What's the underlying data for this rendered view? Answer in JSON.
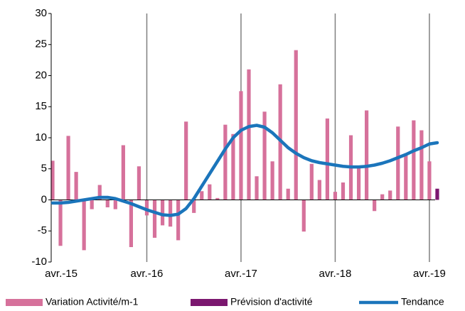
{
  "chart_data": {
    "type": "bar-line",
    "categories": [
      "avr.-15",
      null,
      null,
      null,
      null,
      null,
      null,
      null,
      null,
      null,
      null,
      null,
      "avr.-16",
      null,
      null,
      null,
      null,
      null,
      null,
      null,
      null,
      null,
      null,
      null,
      "avr.-17",
      null,
      null,
      null,
      null,
      null,
      null,
      null,
      null,
      null,
      null,
      null,
      "avr.-18",
      null,
      null,
      null,
      null,
      null,
      null,
      null,
      null,
      null,
      null,
      null,
      "avr.-19",
      null
    ],
    "series": [
      {
        "name": "Variation Activité/m-1",
        "type": "bar",
        "color": "#d6719b",
        "values": [
          6.3,
          -7.4,
          10.3,
          4.5,
          -8.1,
          -1.5,
          2.4,
          -1.2,
          -1.5,
          8.8,
          -7.6,
          5.4,
          -2.5,
          -6.1,
          -4.1,
          -4.3,
          -6.5,
          12.6,
          -2.1,
          1.4,
          2.5,
          0.3,
          12.1,
          10.6,
          17.5,
          21.0,
          3.8,
          14.2,
          6.2,
          18.6,
          1.8,
          24.1,
          -5.1,
          5.8,
          3.2,
          13.1,
          1.3,
          2.8,
          10.4,
          5.5,
          14.4,
          -1.8,
          0.9,
          1.5,
          11.8,
          7.2,
          12.8,
          11.2,
          6.2,
          null
        ]
      },
      {
        "name": "Prévision d'activité",
        "type": "bar",
        "color": "#7b176f",
        "values": [
          null,
          null,
          null,
          null,
          null,
          null,
          null,
          null,
          null,
          null,
          null,
          null,
          null,
          null,
          null,
          null,
          null,
          null,
          null,
          null,
          null,
          null,
          null,
          null,
          null,
          null,
          null,
          null,
          null,
          null,
          null,
          null,
          null,
          null,
          null,
          null,
          null,
          null,
          null,
          null,
          null,
          null,
          null,
          null,
          null,
          null,
          null,
          null,
          null,
          1.8
        ]
      },
      {
        "name": "Tendance",
        "type": "line",
        "color": "#1b75bb",
        "values": [
          -0.5,
          -0.5,
          -0.4,
          -0.2,
          0,
          0.2,
          0.4,
          0.4,
          0.2,
          -0.2,
          -0.6,
          -1.1,
          -1.6,
          -2.0,
          -2.4,
          -2.5,
          -2.3,
          -1.4,
          0.2,
          2.2,
          4.2,
          6.2,
          8.2,
          10.0,
          11.2,
          11.8,
          12.0,
          11.7,
          10.8,
          9.6,
          8.4,
          7.5,
          6.8,
          6.3,
          6.0,
          5.8,
          5.6,
          5.4,
          5.3,
          5.3,
          5.4,
          5.6,
          5.9,
          6.3,
          6.8,
          7.3,
          7.9,
          8.4,
          9.0,
          9.2
        ]
      }
    ],
    "ylim": [
      -10,
      30
    ],
    "yticks": [
      -10,
      -5,
      0,
      5,
      10,
      15,
      20,
      25,
      30
    ],
    "grid": "x"
  }
}
